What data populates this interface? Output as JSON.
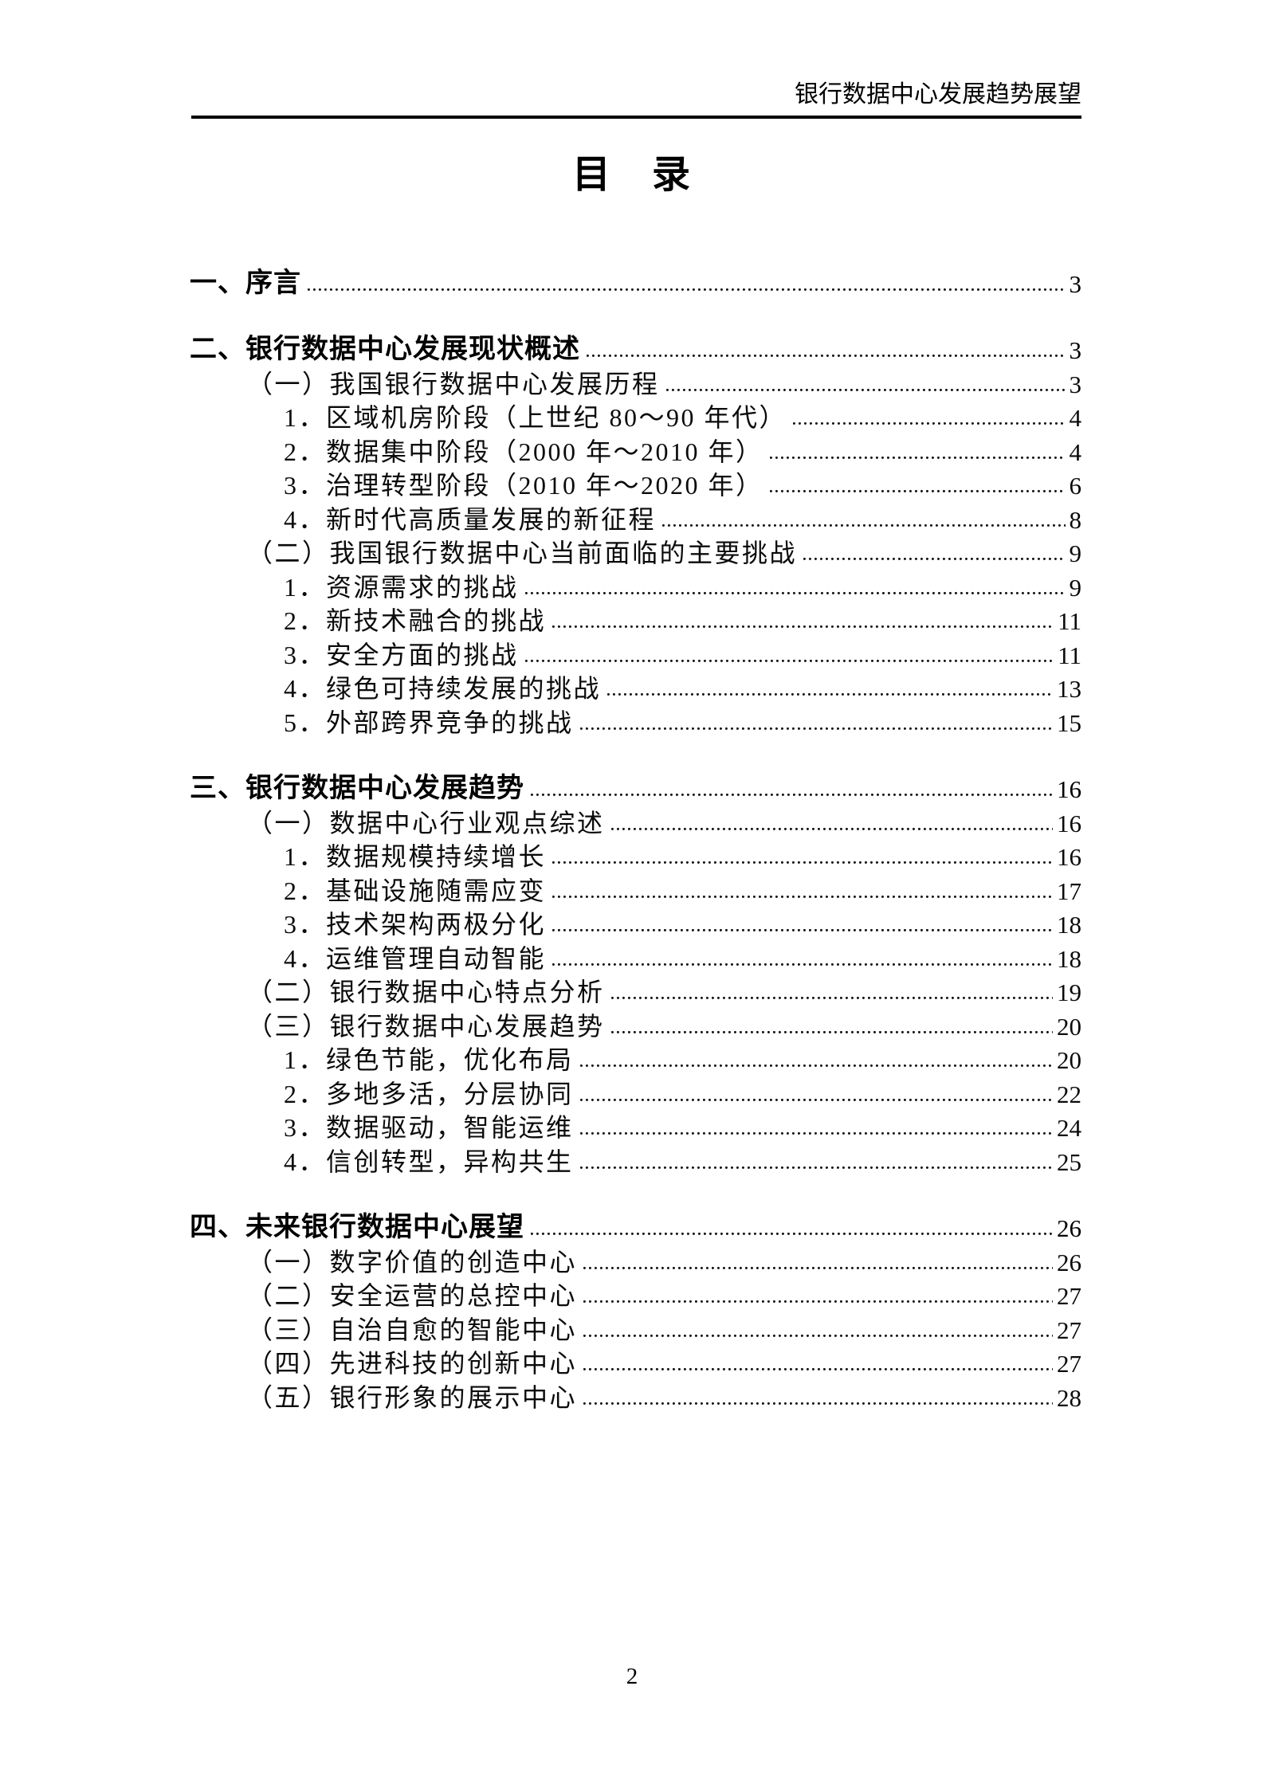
{
  "document": {
    "header_text": "银行数据中心发展趋势展望",
    "title": "目　录",
    "footer_page_number": "2"
  },
  "toc": {
    "entries": [
      {
        "level": 1,
        "label": "一、序言",
        "page": "3"
      },
      {
        "level": 1,
        "label": "二、银行数据中心发展现状概述",
        "page": "3",
        "section_gap": true
      },
      {
        "level": 2,
        "label": "（一）我国银行数据中心发展历程",
        "page": "3"
      },
      {
        "level": 3,
        "label": "1．区域机房阶段（上世纪 80～90 年代）",
        "page": "4"
      },
      {
        "level": 3,
        "label": "2．数据集中阶段（2000 年～2010 年）",
        "page": "4"
      },
      {
        "level": 3,
        "label": "3．治理转型阶段（2010 年～2020 年）",
        "page": "6"
      },
      {
        "level": 3,
        "label": "4．新时代高质量发展的新征程",
        "page": "8"
      },
      {
        "level": 2,
        "label": "（二）我国银行数据中心当前面临的主要挑战",
        "page": "9"
      },
      {
        "level": 3,
        "label": "1．资源需求的挑战",
        "page": "9"
      },
      {
        "level": 3,
        "label": "2．新技术融合的挑战",
        "page": "11"
      },
      {
        "level": 3,
        "label": "3．安全方面的挑战",
        "page": "11"
      },
      {
        "level": 3,
        "label": "4．绿色可持续发展的挑战",
        "page": "13"
      },
      {
        "level": 3,
        "label": "5．外部跨界竞争的挑战",
        "page": "15"
      },
      {
        "level": 1,
        "label": "三、银行数据中心发展趋势",
        "page": "16",
        "section_gap": true
      },
      {
        "level": 2,
        "label": "（一）数据中心行业观点综述",
        "page": "16"
      },
      {
        "level": 3,
        "label": "1．数据规模持续增长",
        "page": "16"
      },
      {
        "level": 3,
        "label": "2．基础设施随需应变",
        "page": "17"
      },
      {
        "level": 3,
        "label": "3．技术架构两极分化",
        "page": "18"
      },
      {
        "level": 3,
        "label": "4．运维管理自动智能",
        "page": "18"
      },
      {
        "level": 2,
        "label": "（二）银行数据中心特点分析",
        "page": "19"
      },
      {
        "level": 2,
        "label": "（三）银行数据中心发展趋势",
        "page": "20"
      },
      {
        "level": 3,
        "label": "1．绿色节能，优化布局",
        "page": "20"
      },
      {
        "level": 3,
        "label": "2．多地多活，分层协同",
        "page": "22"
      },
      {
        "level": 3,
        "label": "3．数据驱动，智能运维",
        "page": "24"
      },
      {
        "level": 3,
        "label": "4．信创转型，异构共生",
        "page": "25"
      },
      {
        "level": 1,
        "label": "四、未来银行数据中心展望",
        "page": "26",
        "section_gap": true
      },
      {
        "level": 2,
        "label": "（一）数字价值的创造中心",
        "page": "26"
      },
      {
        "level": 2,
        "label": "（二）安全运营的总控中心",
        "page": "27"
      },
      {
        "level": 2,
        "label": "（三）自治自愈的智能中心",
        "page": "27"
      },
      {
        "level": 2,
        "label": "（四）先进科技的创新中心",
        "page": "27"
      },
      {
        "level": 2,
        "label": "（五）银行形象的展示中心",
        "page": "28"
      }
    ]
  }
}
